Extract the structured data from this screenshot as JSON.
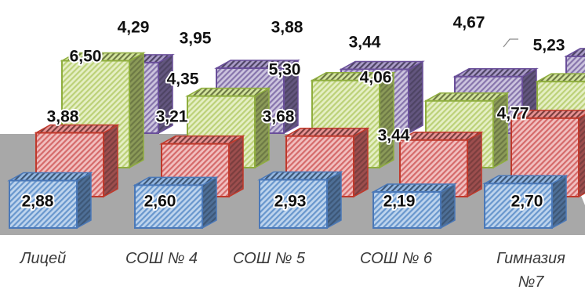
{
  "chart_data": {
    "type": "bar",
    "title": "",
    "xlabel": "",
    "ylabel": "",
    "categories": [
      "Лицей",
      "СОШ № 4",
      "СОШ № 5",
      "СОШ № 6",
      "Гимназия №7"
    ],
    "category_lines": [
      [
        "Лицей"
      ],
      [
        "СОШ № 4"
      ],
      [
        "СОШ № 5"
      ],
      [
        "СОШ № 6"
      ],
      [
        "Гимназия",
        "№7"
      ]
    ],
    "series": [
      {
        "values": [
          2.88,
          2.6,
          2.93,
          2.19,
          2.7
        ],
        "labels": [
          "2,88",
          "2,60",
          "2,93",
          "2,19",
          "2,70"
        ],
        "color": "#6f9fd8",
        "edge": "#4a78b8"
      },
      {
        "values": [
          3.88,
          3.21,
          3.68,
          3.44,
          4.77
        ],
        "labels": [
          "3,88",
          "3,21",
          "3,68",
          "3,44",
          "4,77"
        ],
        "color": "#e07070",
        "edge": "#c0392b"
      },
      {
        "values": [
          6.5,
          4.35,
          5.3,
          4.06,
          5.23
        ],
        "labels": [
          "6,50",
          "4,35",
          "5,30",
          "4,06",
          "5,23"
        ],
        "color": "#c6dc7e",
        "edge": "#8fae3f"
      },
      {
        "values": [
          4.29,
          3.95,
          3.88,
          3.44,
          4.67
        ],
        "labels": [
          "4,29",
          "3,95",
          "3,88",
          "3,44",
          "4,67"
        ],
        "color": "#8e7bb5",
        "edge": "#6a4f9a"
      }
    ],
    "grid": false,
    "legend": "none"
  }
}
